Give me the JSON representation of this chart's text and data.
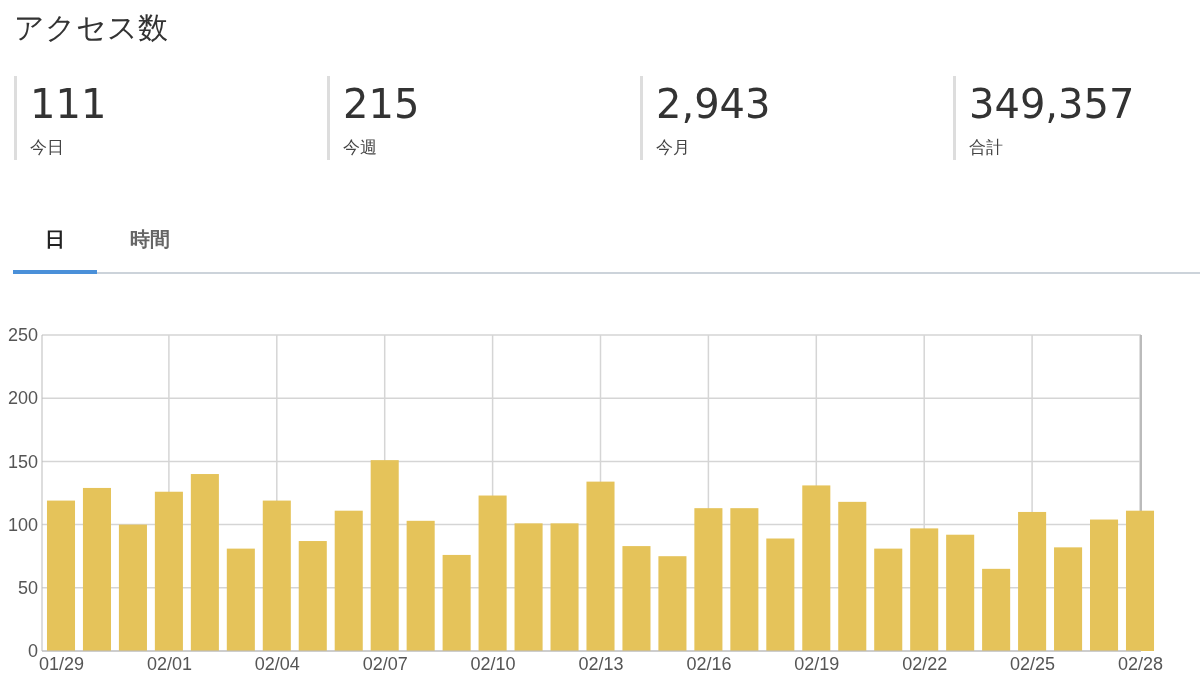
{
  "chart_data": {
    "type": "bar",
    "title": "アクセス数",
    "annotations": [
      "111",
      "今日",
      "215",
      "今週",
      "2,943",
      "今月",
      "349,357",
      "合計",
      "日",
      "時間"
    ],
    "categories": [
      "01/29",
      null,
      null,
      "02/01",
      null,
      null,
      "02/04",
      null,
      null,
      "02/07",
      null,
      null,
      "02/10",
      null,
      null,
      "02/13",
      null,
      null,
      "02/16",
      null,
      null,
      "02/19",
      null,
      null,
      "02/22",
      null,
      null,
      "02/25",
      null,
      null,
      "02/28"
    ],
    "values": [
      119,
      129,
      100,
      126,
      140,
      81,
      119,
      87,
      111,
      151,
      103,
      76,
      123,
      101,
      101,
      134,
      83,
      75,
      113,
      113,
      89,
      131,
      118,
      81,
      97,
      92,
      65,
      110,
      82,
      104,
      111
    ],
    "color": "#e5c35a",
    "ylim": [
      0,
      250
    ],
    "yticks": [
      0,
      50,
      100,
      150,
      200,
      250
    ],
    "grid": true
  }
}
